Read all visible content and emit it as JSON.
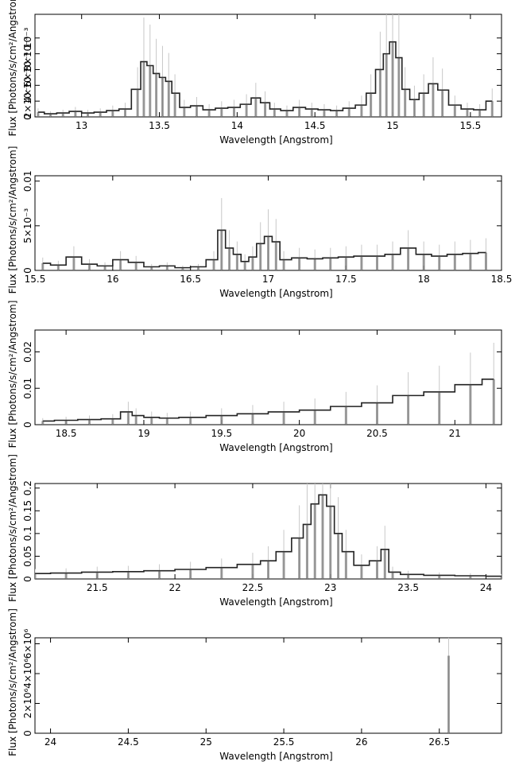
{
  "figure": {
    "shared_ylabel": "Flux [Photons/s/cm²/Angstrom]",
    "shared_xlabel": "Wavelength [Angstrom]"
  },
  "chart_data": [
    {
      "type": "line",
      "title": "",
      "xlabel": "Wavelength [Angstrom]",
      "ylabel": "Flux [Photons/s/cm²/Angstrom]",
      "xlim": [
        12.7,
        15.7
      ],
      "ylim": [
        0,
        0.0013
      ],
      "xticks": [
        13,
        13.5,
        14,
        14.5,
        15,
        15.5
      ],
      "xtick_labels": [
        "13",
        "13.5",
        "14",
        "14.5",
        "15",
        "15.5"
      ],
      "yticks": [
        0,
        0.0002,
        0.0004,
        0.0006,
        0.0008,
        0.001
      ],
      "ytick_labels": [
        "0",
        "2×10⁻⁴",
        "4×10⁻⁴",
        "6×10⁻⁴",
        "8×10⁻⁴",
        "10⁻³"
      ],
      "series": [
        {
          "x": [
            12.72,
            12.8,
            12.88,
            12.96,
            13.04,
            13.12,
            13.2,
            13.28,
            13.36,
            13.4,
            13.44,
            13.48,
            13.52,
            13.56,
            13.6,
            13.66,
            13.74,
            13.82,
            13.9,
            13.98,
            14.06,
            14.12,
            14.18,
            14.24,
            14.32,
            14.4,
            14.48,
            14.56,
            14.64,
            14.72,
            14.8,
            14.86,
            14.92,
            14.96,
            15.0,
            15.04,
            15.08,
            15.14,
            15.2,
            15.26,
            15.32,
            15.4,
            15.48,
            15.56,
            15.64
          ],
          "y": [
            6e-05,
            4e-05,
            5e-05,
            7e-05,
            5e-05,
            6e-05,
            8e-05,
            0.0001,
            0.00035,
            0.0007,
            0.00065,
            0.00055,
            0.0005,
            0.00045,
            0.0003,
            0.00012,
            0.00014,
            9e-05,
            0.00011,
            0.00012,
            0.00016,
            0.00024,
            0.00018,
            0.0001,
            8e-05,
            0.00012,
            0.0001,
            9e-05,
            8e-05,
            0.00011,
            0.00015,
            0.0003,
            0.0006,
            0.0008,
            0.00095,
            0.00075,
            0.00035,
            0.00022,
            0.0003,
            0.00042,
            0.00034,
            0.00015,
            0.0001,
            9e-05,
            0.0002
          ]
        }
      ]
    },
    {
      "type": "line",
      "title": "",
      "xlabel": "Wavelength [Angstrom]",
      "ylabel": "Flux [Photons/s/cm²/Angstrom]",
      "xlim": [
        15.5,
        18.5
      ],
      "ylim": [
        0,
        0.0106
      ],
      "xticks": [
        15.5,
        16,
        16.5,
        17,
        17.5,
        18,
        18.5
      ],
      "xtick_labels": [
        "15.5",
        "16",
        "16.5",
        "17",
        "17.5",
        "18",
        "18.5"
      ],
      "yticks": [
        0,
        0.005,
        0.01
      ],
      "ytick_labels": [
        "0",
        "5×10⁻³",
        "0.01"
      ],
      "series": [
        {
          "x": [
            15.55,
            15.65,
            15.75,
            15.85,
            15.95,
            16.05,
            16.15,
            16.25,
            16.35,
            16.45,
            16.55,
            16.65,
            16.7,
            16.75,
            16.8,
            16.85,
            16.9,
            16.95,
            17.0,
            17.05,
            17.1,
            17.2,
            17.3,
            17.4,
            17.5,
            17.6,
            17.7,
            17.8,
            17.9,
            18.0,
            18.1,
            18.2,
            18.3,
            18.4
          ],
          "y": [
            0.0008,
            0.0006,
            0.0015,
            0.0007,
            0.0005,
            0.0012,
            0.0009,
            0.0004,
            0.0005,
            0.0003,
            0.0004,
            0.0012,
            0.0045,
            0.0025,
            0.0018,
            0.001,
            0.0015,
            0.003,
            0.0038,
            0.0032,
            0.0012,
            0.0014,
            0.0013,
            0.0014,
            0.0015,
            0.0016,
            0.0016,
            0.0018,
            0.0025,
            0.0018,
            0.0016,
            0.0018,
            0.0019,
            0.002
          ]
        }
      ]
    },
    {
      "type": "line",
      "title": "",
      "xlabel": "Wavelength [Angstrom]",
      "ylabel": "Flux [Photons/s/cm²/Angstrom]",
      "xlim": [
        18.3,
        21.3
      ],
      "ylim": [
        0,
        0.026
      ],
      "xticks": [
        18.5,
        19,
        19.5,
        20,
        20.5,
        21
      ],
      "xtick_labels": [
        "18.5",
        "19",
        "19.5",
        "20",
        "20.5",
        "21"
      ],
      "yticks": [
        0,
        0.01,
        0.02
      ],
      "ytick_labels": [
        "0",
        "0.01",
        "0.02"
      ],
      "series": [
        {
          "x": [
            18.35,
            18.5,
            18.65,
            18.8,
            18.9,
            18.95,
            19.05,
            19.15,
            19.3,
            19.5,
            19.7,
            19.9,
            20.1,
            20.3,
            20.5,
            20.7,
            20.9,
            21.1,
            21.25
          ],
          "y": [
            0.001,
            0.0012,
            0.0014,
            0.0016,
            0.0035,
            0.0025,
            0.002,
            0.0018,
            0.002,
            0.0025,
            0.003,
            0.0035,
            0.004,
            0.005,
            0.006,
            0.008,
            0.009,
            0.011,
            0.0125
          ]
        }
      ]
    },
    {
      "type": "line",
      "title": "",
      "xlabel": "Wavelength [Angstrom]",
      "ylabel": "Flux [Photons/s/cm²/Angstrom]",
      "xlim": [
        21.1,
        24.1
      ],
      "ylim": [
        0,
        0.21
      ],
      "xticks": [
        21.5,
        22,
        22.5,
        23,
        23.5,
        24
      ],
      "xtick_labels": [
        "21.5",
        "22",
        "22.5",
        "23",
        "23.5",
        "24"
      ],
      "yticks": [
        0,
        0.05,
        0.1,
        0.15,
        0.2
      ],
      "ytick_labels": [
        "0",
        "0.05",
        "0.1",
        "0.15",
        "0.2"
      ],
      "series": [
        {
          "x": [
            21.1,
            21.3,
            21.5,
            21.7,
            21.9,
            22.1,
            22.3,
            22.5,
            22.6,
            22.7,
            22.8,
            22.85,
            22.9,
            22.95,
            23.0,
            23.05,
            23.1,
            23.2,
            23.3,
            23.35,
            23.4,
            23.5,
            23.7,
            23.9,
            24.1
          ],
          "y": [
            0.012,
            0.013,
            0.015,
            0.016,
            0.018,
            0.021,
            0.025,
            0.032,
            0.04,
            0.06,
            0.09,
            0.12,
            0.165,
            0.185,
            0.16,
            0.1,
            0.06,
            0.03,
            0.04,
            0.065,
            0.015,
            0.01,
            0.008,
            0.007,
            0.006
          ]
        }
      ]
    },
    {
      "type": "line",
      "title": "",
      "xlabel": "Wavelength [Angstrom]",
      "ylabel": "Flux [Photons/s/cm²/Angstrom]",
      "xlim": [
        23.9,
        26.9
      ],
      "ylim": [
        0,
        6400000
      ],
      "xticks": [
        24,
        24.5,
        25,
        25.5,
        26,
        26.5
      ],
      "xtick_labels": [
        "24",
        "24.5",
        "25",
        "25.5",
        "26",
        "26.5"
      ],
      "yticks": [
        0,
        2000000,
        4000000,
        6000000
      ],
      "ytick_labels": [
        "0",
        "2×10⁶",
        "4×10⁶",
        "6×10⁶"
      ],
      "series": [
        {
          "x": [
            26.56
          ],
          "y": [
            5200000
          ]
        }
      ]
    }
  ]
}
